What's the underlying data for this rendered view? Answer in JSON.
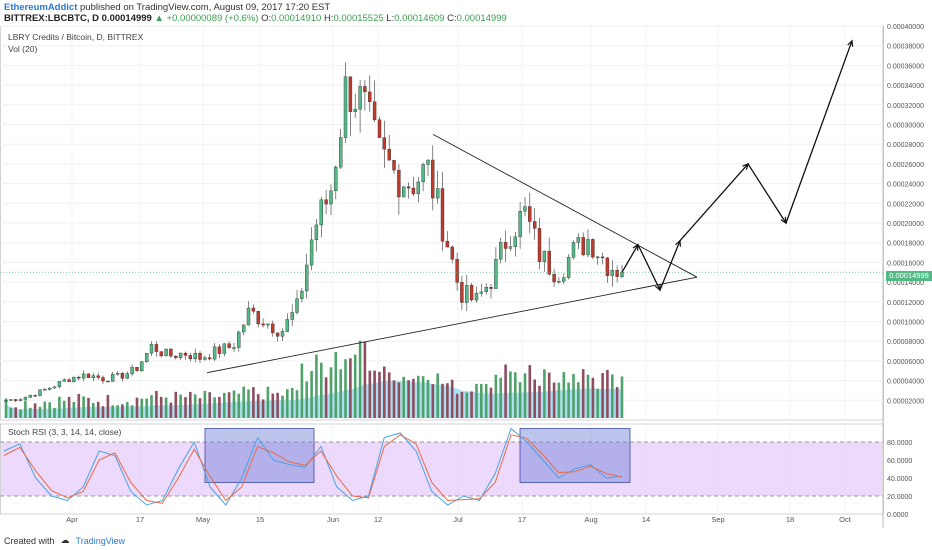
{
  "header": {
    "author": "EthereumAddict",
    "published_text": "published on TradingView.com, August 09, 2017 17:20 EST",
    "pair": "BITTREX:LBCBTC, D",
    "last": "0.00014999",
    "change": "+0.00000089 (+0.6%)",
    "o_label": "O:",
    "o_value": "0.00014910",
    "h_label": "H:",
    "h_value": "0.00015525",
    "l_label": "L:",
    "l_value": "0.00014609",
    "c_label": "C:",
    "c_value": "0.00014999"
  },
  "symbol_label": "LBRY Credits / Bitcoin, D, BITTREX",
  "volume_label": "Vol (20)",
  "stoch_label": "Stoch RSI (3, 3, 14, 14, close)",
  "price_badge": "0.00014999",
  "footer": {
    "created_with": "Created with",
    "brand": "TradingView"
  },
  "colors": {
    "up": "#53b987",
    "down": "#c0392b",
    "vol_up": "#4fa36a",
    "vol_down": "#8e4e5e",
    "vol_ma": "#8cd3ef",
    "stoch_k": "#4aa3df",
    "stoch_d": "#e86b4a",
    "stoch_band": "#e6ccfb",
    "highlight_box": "#6f7fd6"
  },
  "chart_data": [
    {
      "type": "candlestick",
      "title": "LBRY Credits / Bitcoin, D, BITTREX",
      "x_ticks": [
        "Apr",
        "17",
        "May",
        "15",
        "Jun",
        "12",
        "Jul",
        "17",
        "Aug",
        "14",
        "Sep",
        "18",
        "Oct"
      ],
      "y_ticks": [
        "0.00040000",
        "0.00038000",
        "0.00036000",
        "0.00034000",
        "0.00032000",
        "0.00030000",
        "0.00028000",
        "0.00026000",
        "0.00024000",
        "0.00022000",
        "0.00020000",
        "0.00018000",
        "0.00016000",
        "0.00014000",
        "0.00012000",
        "0.00010000",
        "0.00008000",
        "0.00006000",
        "0.00004000",
        "0.00002000"
      ],
      "ylim": [
        0.0,
        0.0004
      ],
      "grid": true,
      "ohlc_anchor_closes": [
        2e-05,
        2.2e-05,
        2.8e-05,
        3.5e-05,
        4.3e-05,
        4.6e-05,
        4.2e-05,
        4.4e-05,
        5.1e-05,
        7.5e-05,
        6.5e-05,
        6.8e-05,
        6.3e-05,
        7e-05,
        7.5e-05,
        0.00011,
        0.0001,
        9e-05,
        0.000115,
        0.000195,
        0.00023,
        0.00034,
        0.00032,
        0.00027,
        0.00025,
        0.00024,
        0.000255,
        0.000195,
        0.00013,
        0.00012,
        0.000145,
        0.00019,
        0.00021,
        0.000165,
        0.00015,
        0.00017,
        0.000185,
        0.00016,
        0.00015
      ],
      "last_price": 0.00014999,
      "annotations": {
        "upper_trendline": [
          [
            0.00029,
            0
          ],
          [
            0.000145,
            1
          ]
        ],
        "lower_trendline": [
          [
            4.8e-05,
            0
          ],
          [
            0.000145,
            1
          ]
        ],
        "projection_path": [
          0.00015,
          0.000178,
          0.000132,
          0.000182,
          0.00026,
          0.0002,
          0.000385
        ]
      }
    },
    {
      "type": "bar",
      "title": "Vol (20)"
    },
    {
      "type": "line",
      "title": "Stoch RSI (3, 3, 14, 14, close)",
      "y_ticks": [
        "80.0000",
        "60.0000",
        "40.0000",
        "20.0000",
        "0.0000"
      ],
      "ylim": [
        0,
        100
      ],
      "band": [
        20,
        80
      ],
      "series": [
        {
          "values": [
            70,
            78,
            40,
            20,
            15,
            30,
            70,
            65,
            25,
            10,
            15,
            50,
            80,
            30,
            10,
            40,
            85,
            60,
            55,
            52,
            75,
            30,
            15,
            20,
            85,
            90,
            70,
            25,
            10,
            20,
            15,
            45,
            95,
            80,
            60,
            40,
            50,
            55,
            40,
            42
          ]
        },
        {
          "values": [
            65,
            74,
            48,
            26,
            18,
            25,
            60,
            68,
            35,
            15,
            12,
            40,
            72,
            42,
            15,
            30,
            75,
            68,
            58,
            54,
            70,
            42,
            20,
            18,
            75,
            88,
            78,
            35,
            15,
            16,
            17,
            35,
            88,
            84,
            66,
            46,
            47,
            53,
            45,
            41
          ]
        }
      ],
      "highlight_boxes": [
        [
          32,
          36
        ],
        [
          58,
          65
        ]
      ]
    }
  ]
}
